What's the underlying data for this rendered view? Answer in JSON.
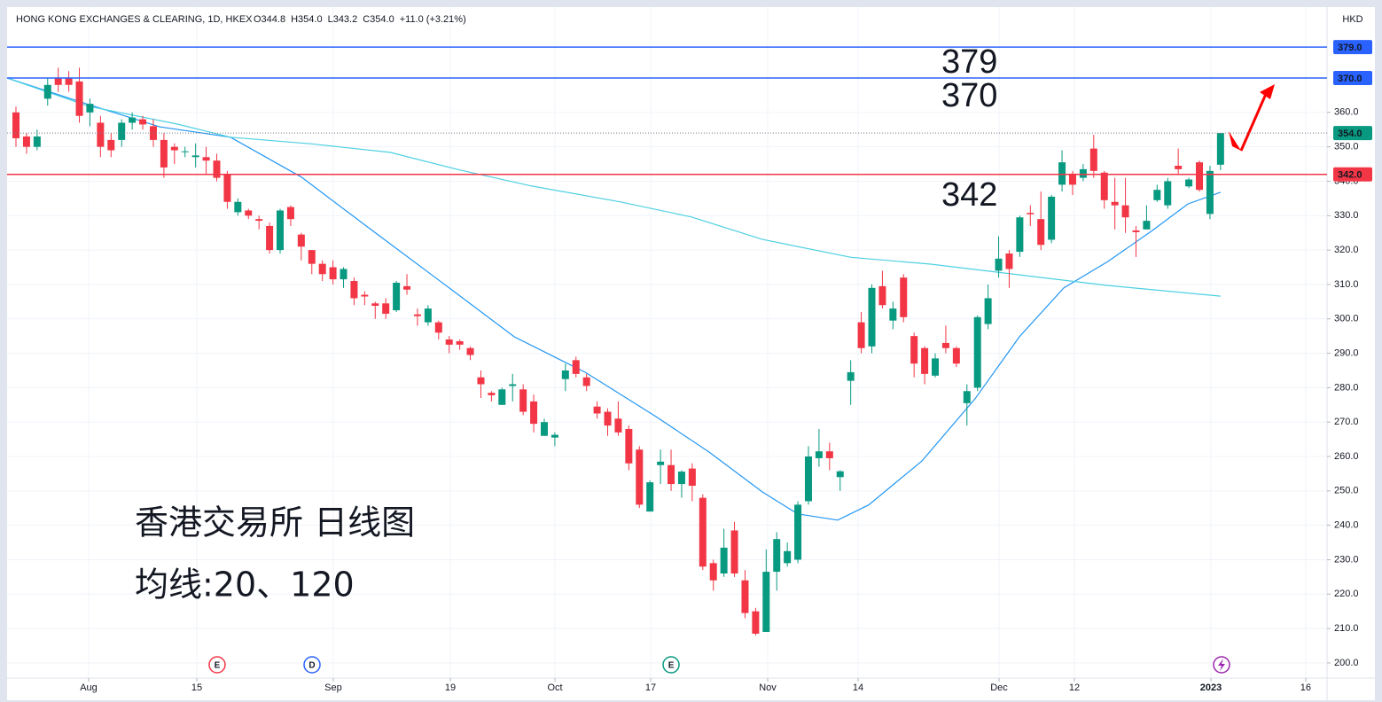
{
  "chart_data": {
    "type": "candlestick",
    "title": "HONG KONG EXCHANGES & CLEARING, 1D, HKEX",
    "legend_items": [
      "O344.8",
      "H354.0",
      "L343.2",
      "C354.0",
      "+11.0 (+3.21%)"
    ],
    "currency": "HKD",
    "up_color": "#089981",
    "down_color": "#f23645",
    "candles": [
      [
        360,
        361.7,
        350,
        352.5
      ],
      [
        353,
        354,
        348,
        350
      ],
      [
        350,
        355,
        349,
        353
      ],
      [
        364,
        370,
        362,
        368
      ],
      [
        370,
        373,
        366,
        368
      ],
      [
        370,
        372,
        366,
        368
      ],
      [
        369,
        373,
        357,
        359
      ],
      [
        360,
        364,
        356,
        362.5
      ],
      [
        357,
        359,
        347,
        350
      ],
      [
        352,
        354,
        347,
        349
      ],
      [
        352,
        358,
        350,
        357
      ],
      [
        357,
        360,
        355,
        358.5
      ],
      [
        358,
        359,
        355,
        356.5
      ],
      [
        356,
        358,
        350,
        352
      ],
      [
        352,
        354,
        341,
        344
      ],
      [
        350,
        351,
        345,
        349
      ],
      [
        348.5,
        350,
        347,
        348.7
      ],
      [
        347,
        351,
        344,
        347.5
      ],
      [
        347,
        350,
        342,
        346
      ],
      [
        346,
        348,
        340,
        341
      ],
      [
        342,
        343,
        332,
        334
      ],
      [
        331,
        335,
        330,
        334
      ],
      [
        331.5,
        332,
        329,
        330
      ],
      [
        329,
        330,
        326,
        328.5
      ],
      [
        327,
        328,
        319,
        320
      ],
      [
        320,
        332,
        319,
        331.5
      ],
      [
        332.5,
        333,
        327,
        329
      ],
      [
        324.5,
        325,
        317,
        321
      ],
      [
        320,
        320,
        313,
        316
      ],
      [
        316,
        317,
        311,
        313
      ],
      [
        315,
        317,
        310,
        311.5
      ],
      [
        311.5,
        315,
        309,
        314.5
      ],
      [
        311,
        312,
        304,
        306
      ],
      [
        307,
        308,
        304,
        306.5
      ],
      [
        304.5,
        305,
        300,
        303.8
      ],
      [
        304.5,
        306,
        300,
        301.5
      ],
      [
        302.5,
        311,
        302,
        310.5
      ],
      [
        309.5,
        313,
        307,
        308.5
      ],
      [
        301.3,
        303,
        298,
        300.8
      ],
      [
        299,
        304,
        298,
        303
      ],
      [
        299,
        299.5,
        294,
        296
      ],
      [
        294,
        295,
        290,
        292.5
      ],
      [
        293.5,
        294,
        291,
        292.5
      ],
      [
        291.5,
        292,
        288,
        289.5
      ],
      [
        283,
        285,
        277,
        281
      ],
      [
        278.5,
        279,
        276,
        277.8
      ],
      [
        275,
        280,
        275,
        279.5
      ],
      [
        280.5,
        284,
        276,
        281
      ],
      [
        279.5,
        281,
        272,
        273
      ],
      [
        276,
        278,
        267,
        269.5
      ],
      [
        266,
        271,
        266,
        270
      ],
      [
        265.5,
        267,
        263,
        266.3
      ],
      [
        282.5,
        287,
        279,
        285
      ],
      [
        288,
        289,
        283,
        284
      ],
      [
        283,
        284,
        279,
        280.5
      ],
      [
        274.5,
        276,
        271,
        272.5
      ],
      [
        273,
        274,
        266,
        269
      ],
      [
        271,
        276,
        266,
        267
      ],
      [
        268,
        269,
        256,
        258
      ],
      [
        262,
        263,
        245,
        246
      ],
      [
        244,
        253,
        244,
        252.5
      ],
      [
        257.5,
        262,
        252,
        258.5
      ],
      [
        257.5,
        262,
        250,
        252
      ],
      [
        252,
        256,
        248,
        255.6
      ],
      [
        256.5,
        258,
        247,
        251.5
      ],
      [
        248,
        249,
        227,
        228
      ],
      [
        229,
        230,
        221,
        224
      ],
      [
        226,
        239,
        225,
        233.5
      ],
      [
        238.5,
        241,
        225,
        226
      ],
      [
        224,
        227,
        213,
        214.5
      ],
      [
        215,
        216,
        208,
        208.5
      ],
      [
        209,
        233,
        209,
        226.5
      ],
      [
        226.5,
        238,
        221,
        236
      ],
      [
        229,
        235,
        228,
        232.5
      ],
      [
        230,
        247,
        229,
        246
      ],
      [
        247,
        263,
        246,
        260
      ],
      [
        259.5,
        268,
        257,
        261.5
      ],
      [
        261.5,
        264,
        256,
        259.5
      ],
      [
        254,
        256,
        250,
        255.7
      ],
      [
        282,
        288,
        275,
        284.5
      ],
      [
        299,
        302,
        290,
        291.5
      ],
      [
        292,
        310,
        290,
        309
      ],
      [
        309.5,
        314,
        303,
        304
      ],
      [
        299.5,
        305,
        297,
        303
      ],
      [
        312,
        313,
        299,
        300.5
      ],
      [
        295,
        296,
        283,
        287
      ],
      [
        291.5,
        292,
        281,
        284
      ],
      [
        283.5,
        290,
        283,
        288.5
      ],
      [
        293,
        298,
        290,
        291.5
      ],
      [
        291.5,
        292,
        286,
        287
      ],
      [
        275.5,
        281,
        269,
        279
      ],
      [
        280,
        301,
        279,
        300.5
      ],
      [
        298.5,
        310,
        297,
        306
      ],
      [
        314,
        324,
        312,
        317.5
      ],
      [
        319,
        320,
        309,
        314.5
      ],
      [
        319.5,
        330,
        318,
        329.5
      ],
      [
        330.8,
        333,
        327,
        330.4
      ],
      [
        329,
        337,
        320,
        321.5
      ],
      [
        323,
        336,
        322,
        335.5
      ],
      [
        339,
        349,
        337,
        345.5
      ],
      [
        342.2,
        343,
        336,
        339
      ],
      [
        341,
        345,
        340,
        343.5
      ],
      [
        349.5,
        353.5,
        341,
        343
      ],
      [
        342.5,
        343,
        332,
        334.5
      ],
      [
        334,
        341,
        326,
        333
      ],
      [
        333,
        341,
        325,
        329.5
      ],
      [
        325.7,
        327,
        318,
        325.2
      ],
      [
        326,
        333,
        326,
        328.5
      ],
      [
        334.5,
        339,
        334,
        337.5
      ],
      [
        333,
        341,
        332,
        340
      ],
      [
        344.5,
        349.5,
        342,
        343.5
      ],
      [
        338.5,
        341,
        338,
        340.5
      ],
      [
        345.5,
        346,
        337,
        337.5
      ],
      [
        330.5,
        344.5,
        329,
        343
      ],
      [
        344.8,
        354,
        343.2,
        354
      ]
    ],
    "lines": [
      {
        "color": "#2196f3",
        "x": [
          -0.84,
          6.88,
          13.59,
          20.3,
          27.01,
          33.72,
          40.44,
          47.15,
          53.86,
          60.57,
          65.6,
          70.64,
          73.99,
          77.77,
          80.7,
          85.74,
          90.77,
          94.97,
          99.16,
          103.36,
          107.55,
          110.91,
          114.0
        ],
        "values": [
          370,
          362.3,
          355.8,
          352.8,
          341.2,
          325.7,
          310.3,
          294.8,
          284.5,
          271.6,
          261.3,
          249.7,
          243.3,
          241.5,
          245.9,
          258.7,
          276.8,
          294.8,
          309,
          316.7,
          325.7,
          333.4,
          336.8
        ]
      },
      {
        "color": "#4dd0e1",
        "x": [
          -0.84,
          6.88,
          15.27,
          20.3,
          27.85,
          35.4,
          42.11,
          48.83,
          57.21,
          63.93,
          70.64,
          79.03,
          86.58,
          94.97,
          103.36,
          114.0
        ],
        "values": [
          370,
          361.8,
          356.6,
          352.8,
          350.9,
          348.4,
          343.2,
          338.6,
          334,
          329.6,
          323.1,
          317.9,
          315.9,
          312.8,
          309.7,
          306.6
        ]
      }
    ],
    "levels": [
      {
        "value": 379,
        "label": "379.0",
        "color": "#2962ff",
        "style": "solid"
      },
      {
        "value": 370,
        "label": "370.0",
        "color": "#2962ff",
        "style": "solid"
      },
      {
        "value": 354,
        "label": "354.0",
        "color": "#089981",
        "style": "dotted"
      },
      {
        "value": 342,
        "label": "342.0",
        "color": "#f23645",
        "style": "solid"
      }
    ],
    "annotations": [
      "379",
      "370",
      "342"
    ],
    "notes": [
      "香港交易所 日线图",
      "均线:20、120"
    ],
    "events": [
      {
        "label": "E",
        "x": 19.04,
        "color": "#f23645"
      },
      {
        "label": "D",
        "x": 28.02,
        "color": "#2962ff"
      },
      {
        "label": "E",
        "x": 62.0,
        "color": "#089981"
      }
    ],
    "xlim": [
      -0.84,
      124.08
    ],
    "xticks": [
      {
        "value": 6.88,
        "label": "Aug"
      },
      {
        "value": 17.11,
        "label": "15"
      },
      {
        "value": 30.03,
        "label": "Sep"
      },
      {
        "value": 41.11,
        "label": "19"
      },
      {
        "value": 51.01,
        "label": "Oct"
      },
      {
        "value": 60.07,
        "label": "17"
      },
      {
        "value": 71.14,
        "label": "Nov"
      },
      {
        "value": 79.7,
        "label": "14"
      },
      {
        "value": 93.04,
        "label": "Dec"
      },
      {
        "value": 100.17,
        "label": "12"
      },
      {
        "value": 113.09,
        "label": "2023"
      },
      {
        "value": 122.06,
        "label": "16"
      }
    ],
    "ylim": [
      195.6,
      390.1
    ],
    "yticks": [
      {
        "value": 200,
        "label": "200.0"
      },
      {
        "value": 210,
        "label": "210.0"
      },
      {
        "value": 220,
        "label": "220.0"
      },
      {
        "value": 230,
        "label": "230.0"
      },
      {
        "value": 240,
        "label": "240.0"
      },
      {
        "value": 250,
        "label": "250.0"
      },
      {
        "value": 260,
        "label": "260.0"
      },
      {
        "value": 270,
        "label": "270.0"
      },
      {
        "value": 280,
        "label": "280.0"
      },
      {
        "value": 290,
        "label": "290.0"
      },
      {
        "value": 300,
        "label": "300.0"
      },
      {
        "value": 310,
        "label": "310.0"
      },
      {
        "value": 320,
        "label": "320.0"
      },
      {
        "value": 330,
        "label": "330.0"
      },
      {
        "value": 340,
        "label": "340.0"
      },
      {
        "value": 350,
        "label": "350.0"
      },
      {
        "value": 360,
        "label": "360.0"
      }
    ],
    "grid": true
  }
}
